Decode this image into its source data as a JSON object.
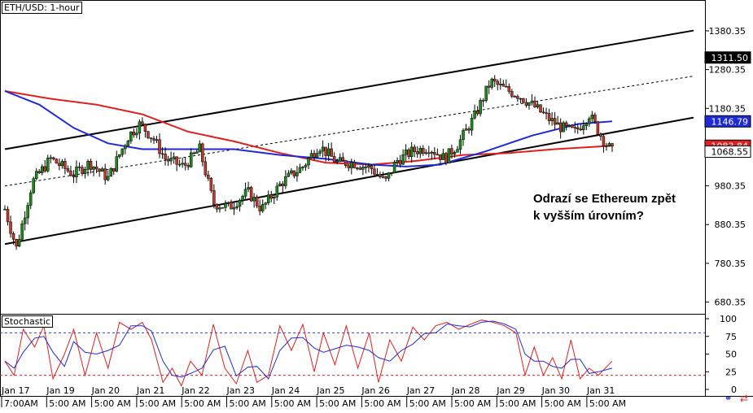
{
  "chart_data": [
    {
      "type": "candlestick",
      "title": "ETH/USD: 1-hour",
      "annotation": [
        "Odrazí se Ethereum zpět",
        "k vyšším úrovním?"
      ],
      "y_ticks": [
        "1380.35",
        "1280.35",
        "1180.35",
        "980.35",
        "880.35",
        "780.35",
        "680.35"
      ],
      "ylim": [
        650,
        1460
      ],
      "price_tags": [
        {
          "label": "1311.50",
          "value": 1311.5,
          "bg": "#000000",
          "fg": "#ffffff"
        },
        {
          "label": "1146.79",
          "value": 1146.79,
          "bg": "#1f2bd6",
          "fg": "#ffffff"
        },
        {
          "label": "1083.84",
          "value": 1083.84,
          "bg": "#e02020",
          "fg": "#ffffff"
        },
        {
          "label": "1068.55",
          "value": 1068.55,
          "bg": "#ffffff",
          "fg": "#000000"
        }
      ],
      "x_labels": [
        "Jan 17",
        "Jan 19",
        "Jan 20",
        "Jan 21",
        "Jan 22",
        "Jan 23",
        "Jan 24",
        "Jan 25",
        "Jan 26",
        "Jan 27",
        "Jan 28",
        "Jan 29",
        "Jan 30",
        "Jan 31"
      ],
      "x_labels_bottom": [
        "7:00AM",
        "5:00 AM",
        "5:00 AM",
        "5:00 AM",
        "5:00 AM",
        "5:00 AM",
        "5:00 AM",
        "5:00 AM",
        "5:00 AM",
        "5:00 AM",
        "5:00 AM",
        "5:00 AM",
        "5:00 AM",
        "5:00 AM"
      ],
      "close_path": [
        [
          0,
          920
        ],
        [
          0.5,
          820
        ],
        [
          1.2,
          990
        ],
        [
          2,
          1050
        ],
        [
          3,
          1010
        ],
        [
          3.7,
          1040
        ],
        [
          4.5,
          1000
        ],
        [
          5.4,
          1110
        ],
        [
          5.9,
          1140
        ],
        [
          6.5,
          1100
        ],
        [
          7,
          1050
        ],
        [
          7.8,
          1030
        ],
        [
          8.5,
          1075
        ],
        [
          9.1,
          935
        ],
        [
          9.8,
          925
        ],
        [
          10.6,
          965
        ],
        [
          11.2,
          920
        ],
        [
          12.1,
          990
        ],
        [
          13,
          1030
        ],
        [
          13.7,
          1085
        ],
        [
          14.5,
          1040
        ],
        [
          15.2,
          1040
        ],
        [
          16,
          1025
        ],
        [
          16.6,
          990
        ],
        [
          17.1,
          1045
        ],
        [
          17.8,
          1070
        ],
        [
          18.5,
          1080
        ],
        [
          19.2,
          1050
        ],
        [
          19.8,
          1090
        ],
        [
          20.5,
          1160
        ],
        [
          21.2,
          1250
        ],
        [
          21.8,
          1230
        ],
        [
          22.4,
          1215
        ],
        [
          23.1,
          1185
        ],
        [
          23.8,
          1150
        ],
        [
          24.3,
          1130
        ],
        [
          24.9,
          1120
        ],
        [
          25.5,
          1165
        ],
        [
          26.1,
          1100
        ],
        [
          26.5,
          1068.55
        ]
      ],
      "ma_red": [
        [
          0,
          1225
        ],
        [
          2,
          1205
        ],
        [
          4,
          1190
        ],
        [
          6,
          1165
        ],
        [
          8,
          1120
        ],
        [
          10,
          1095
        ],
        [
          12,
          1065
        ],
        [
          14,
          1040
        ],
        [
          16,
          1035
        ],
        [
          18,
          1045
        ],
        [
          20,
          1060
        ],
        [
          22,
          1065
        ],
        [
          24,
          1075
        ],
        [
          26.5,
          1083.84
        ]
      ],
      "ma_blue": [
        [
          0,
          1225
        ],
        [
          1.5,
          1190
        ],
        [
          3,
          1130
        ],
        [
          4.5,
          1090
        ],
        [
          6,
          1075
        ],
        [
          8,
          1075
        ],
        [
          10,
          1075
        ],
        [
          12,
          1060
        ],
        [
          14,
          1050
        ],
        [
          16,
          1035
        ],
        [
          17.5,
          1030
        ],
        [
          19,
          1035
        ],
        [
          21,
          1070
        ],
        [
          23,
          1110
        ],
        [
          25,
          1140
        ],
        [
          26.5,
          1146.79
        ]
      ],
      "channel_upper": [
        [
          0,
          1075
        ],
        [
          26.5,
          1345
        ]
      ],
      "channel_middle": [
        [
          0,
          980
        ],
        [
          26.5,
          1230
        ]
      ],
      "channel_lower": [
        [
          0,
          830
        ],
        [
          26.5,
          1118
        ]
      ],
      "grid": "off"
    },
    {
      "type": "line",
      "title": "Stochastic",
      "y_ticks": [
        "100",
        "75",
        "50",
        "25",
        "0"
      ],
      "ylim": [
        0,
        100
      ],
      "levels": [
        80,
        20
      ],
      "k_path": [
        [
          0,
          40
        ],
        [
          0.4,
          20
        ],
        [
          0.8,
          85
        ],
        [
          1.3,
          60
        ],
        [
          1.7,
          90
        ],
        [
          2.1,
          15
        ],
        [
          2.6,
          50
        ],
        [
          3,
          85
        ],
        [
          3.5,
          20
        ],
        [
          4,
          80
        ],
        [
          4.5,
          30
        ],
        [
          5,
          95
        ],
        [
          5.5,
          85
        ],
        [
          6,
          95
        ],
        [
          6.4,
          70
        ],
        [
          6.9,
          10
        ],
        [
          7.3,
          30
        ],
        [
          7.7,
          5
        ],
        [
          8.1,
          40
        ],
        [
          8.6,
          20
        ],
        [
          9.1,
          92
        ],
        [
          9.6,
          30
        ],
        [
          10.1,
          8
        ],
        [
          10.6,
          55
        ],
        [
          11,
          10
        ],
        [
          11.5,
          20
        ],
        [
          12,
          90
        ],
        [
          12.5,
          55
        ],
        [
          13,
          92
        ],
        [
          13.5,
          25
        ],
        [
          13.9,
          80
        ],
        [
          14.4,
          35
        ],
        [
          14.9,
          90
        ],
        [
          15.4,
          30
        ],
        [
          15.9,
          80
        ],
        [
          16.3,
          10
        ],
        [
          16.8,
          70
        ],
        [
          17.3,
          40
        ],
        [
          17.8,
          88
        ],
        [
          18.3,
          70
        ],
        [
          18.8,
          90
        ],
        [
          19.3,
          95
        ],
        [
          19.8,
          85
        ],
        [
          20.3,
          92
        ],
        [
          20.8,
          98
        ],
        [
          21.3,
          95
        ],
        [
          21.8,
          90
        ],
        [
          22.3,
          80
        ],
        [
          22.7,
          20
        ],
        [
          23.1,
          60
        ],
        [
          23.5,
          20
        ],
        [
          23.9,
          45
        ],
        [
          24.3,
          15
        ],
        [
          24.7,
          70
        ],
        [
          25.1,
          15
        ],
        [
          25.5,
          30
        ],
        [
          25.9,
          20
        ],
        [
          26.5,
          40
        ]
      ],
      "colors": {
        "k": "#e02020",
        "d": "#1f2bd6",
        "levels_top": "#3344cc",
        "levels_bottom": "#e02020"
      }
    }
  ]
}
